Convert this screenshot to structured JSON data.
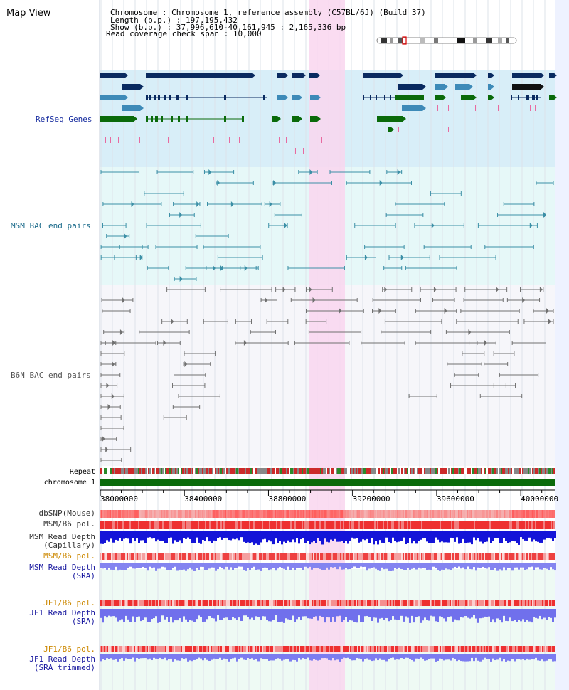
{
  "page": {
    "title": "Map View"
  },
  "info": [
    {
      "key": "Chromosome",
      "sep": "     : ",
      "value": "Chromosome 1, reference assembly (C57BL/6J) (Build 37)",
      "indent": "  "
    },
    {
      "key": "Length (b.p.)",
      "sep": " : ",
      "value": "197,195,432",
      "indent": "  "
    },
    {
      "key": "Show (b.p.)",
      "sep": " : ",
      "value": "37,996,610-40,161,945 : 2,165,336 bp",
      "indent": "   "
    },
    {
      "key": "Read coverage check span",
      "sep": " : ",
      "value": "10,000",
      "indent": ""
    }
  ],
  "axis": {
    "start": 37996610,
    "end": 40161945,
    "ticks": [
      "38000000",
      "38400000",
      "38800000",
      "39200000",
      "39600000",
      "40000000"
    ]
  },
  "tracks": {
    "refseq": "RefSeq Genes",
    "msm_bac": "MSM BAC end pairs",
    "b6n_bac": "B6N BAC end pairs",
    "repeat": "Repeat",
    "chromosome": "chromosome 1",
    "dbsnp": "dbSNP(Mouse)",
    "msm_b6_pol_1": "MSM/B6 pol.",
    "msm_depth_cap_1": "MSM Read Depth",
    "msm_depth_cap_2": "(Capillary)",
    "msm_b6_pol_2": "MSM/B6 pol.",
    "msm_depth_sra_1": "MSM Read Depth",
    "msm_depth_sra_2": "(SRA)",
    "jf1_b6_pol_1": "JF1/B6 pol.",
    "jf1_depth_sra_1": "JF1 Read Depth",
    "jf1_depth_sra_2": "(SRA)",
    "jf1_b6_pol_2": "JF1/B6 pol.",
    "jf1_depth_trim_1": "JF1 Read Depth",
    "jf1_depth_trim_2": "(SRA trimmed)"
  },
  "colors": {
    "refseq_label": "#1a2fa0",
    "msm_label": "#1a6a8a",
    "b6n_label": "#555555",
    "pol_label": "#cc8800",
    "depth_label": "#1a1aa0",
    "highlight": "#f9d6ef",
    "refseq_bg": "#d8eef8",
    "msm_bg": "#e6f8f8",
    "b6n_bg": "#f6f6fa",
    "gene_dark": "#0a2a60",
    "gene_mid": "#3d8ab8",
    "gene_green": "#0a6a0a",
    "msm_line": "#3b8fa6",
    "b6n_line": "#707070",
    "chrom": "#0a6a0a"
  }
}
